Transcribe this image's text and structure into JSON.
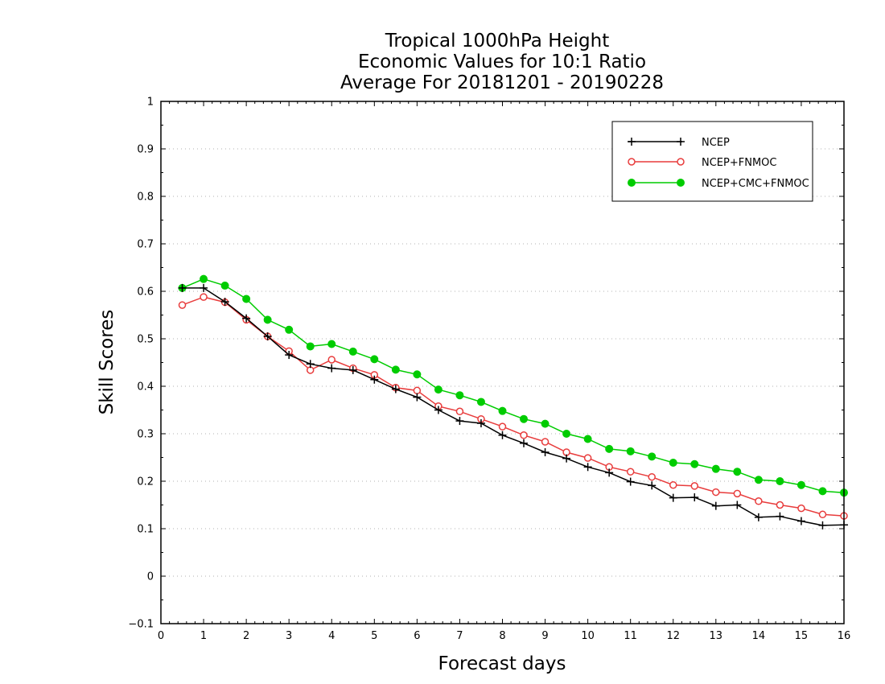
{
  "chart_data": {
    "type": "line",
    "title": [
      "Tropical 1000hPa Height",
      "Economic Values for 10:1 Ratio",
      "Average For 20181201 - 20190228"
    ],
    "xlabel": "Forecast days",
    "ylabel": "Skill Scores",
    "xlim": [
      0,
      16
    ],
    "ylim": [
      -0.1,
      1
    ],
    "xticks": [
      "0",
      "1",
      "2",
      "3",
      "4",
      "5",
      "6",
      "7",
      "8",
      "9",
      "10",
      "11",
      "12",
      "13",
      "14",
      "15",
      "16"
    ],
    "yticks": [
      "−0.1",
      "0",
      "0.1",
      "0.2",
      "0.3",
      "0.4",
      "0.5",
      "0.6",
      "0.7",
      "0.8",
      "0.9",
      "1"
    ],
    "grid": "horizontal-dotted",
    "legend_position": "top-right",
    "x": [
      0.5,
      1,
      1.5,
      2,
      2.5,
      3,
      3.5,
      4,
      4.5,
      5,
      5.5,
      6,
      6.5,
      7,
      7.5,
      8,
      8.5,
      9,
      9.5,
      10,
      10.5,
      11,
      11.5,
      12,
      12.5,
      13,
      13.5,
      14,
      14.5,
      15,
      15.5,
      16
    ],
    "series": [
      {
        "name": "NCEP",
        "color": "#000000",
        "marker": "plus",
        "values": [
          0.607,
          0.607,
          0.578,
          0.543,
          0.505,
          0.466,
          0.447,
          0.438,
          0.434,
          0.414,
          0.394,
          0.377,
          0.35,
          0.327,
          0.322,
          0.297,
          0.28,
          0.261,
          0.248,
          0.23,
          0.218,
          0.199,
          0.191,
          0.165,
          0.166,
          0.148,
          0.15,
          0.124,
          0.126,
          0.116,
          0.107,
          0.108
        ]
      },
      {
        "name": "NCEP+FNMOC",
        "color": "#e83c3c",
        "marker": "open-circle",
        "values": [
          0.571,
          0.588,
          0.577,
          0.54,
          0.505,
          0.474,
          0.434,
          0.456,
          0.438,
          0.424,
          0.397,
          0.391,
          0.358,
          0.347,
          0.331,
          0.315,
          0.297,
          0.283,
          0.261,
          0.249,
          0.23,
          0.22,
          0.209,
          0.192,
          0.19,
          0.177,
          0.174,
          0.158,
          0.15,
          0.143,
          0.13,
          0.127
        ]
      },
      {
        "name": "NCEP+CMC+FNMOC",
        "color": "#00cc00",
        "marker": "filled-circle",
        "values": [
          0.607,
          0.626,
          0.612,
          0.584,
          0.54,
          0.519,
          0.484,
          0.489,
          0.473,
          0.457,
          0.435,
          0.425,
          0.393,
          0.381,
          0.367,
          0.348,
          0.331,
          0.321,
          0.3,
          0.289,
          0.268,
          0.263,
          0.252,
          0.239,
          0.236,
          0.226,
          0.22,
          0.203,
          0.2,
          0.192,
          0.179,
          0.176
        ]
      }
    ]
  }
}
